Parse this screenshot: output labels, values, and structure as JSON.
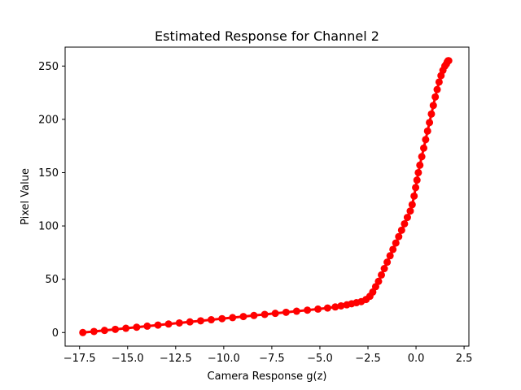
{
  "chart_data": {
    "type": "scatter",
    "title": "Estimated Response for Channel 2",
    "xlabel": "Camera Response g(z)",
    "ylabel": "Pixel Value",
    "xlim": [
      -18.25,
      2.75
    ],
    "ylim": [
      -12.75,
      267.75
    ],
    "xticks": [
      -17.5,
      -15.0,
      -12.5,
      -10.0,
      -7.5,
      -5.0,
      -2.5,
      0.0,
      2.5
    ],
    "xtick_labels": [
      "−17.5",
      "−15.0",
      "−12.5",
      "−10.0",
      "−7.5",
      "−5.0",
      "−2.5",
      "0.0",
      "2.5"
    ],
    "yticks": [
      0,
      50,
      100,
      150,
      200,
      250
    ],
    "ytick_labels": [
      "0",
      "50",
      "100",
      "150",
      "200",
      "250"
    ],
    "grid": false,
    "legend": "none",
    "marker": "circle",
    "color": "#ff0000",
    "series": [
      {
        "x": [
          -17.33,
          -16.75,
          -16.2,
          -15.64,
          -15.09,
          -14.53,
          -13.98,
          -13.42,
          -12.87,
          -12.31,
          -11.76,
          -11.2,
          -10.65,
          -10.09,
          -9.54,
          -8.98,
          -8.43,
          -7.87,
          -7.32,
          -6.76,
          -6.21,
          -5.65,
          -5.1,
          -4.6,
          -4.2,
          -3.9,
          -3.6,
          -3.35,
          -3.1,
          -2.85,
          -2.6,
          -2.4,
          -2.25,
          -2.1,
          -1.95,
          -1.8,
          -1.65,
          -1.5,
          -1.35,
          -1.2,
          -1.05,
          -0.9,
          -0.75,
          -0.6,
          -0.45,
          -0.3,
          -0.2,
          -0.1,
          -0.02,
          0.05,
          0.12,
          0.2,
          0.3,
          0.4,
          0.5,
          0.6,
          0.7,
          0.8,
          0.9,
          1.0,
          1.1,
          1.2,
          1.3,
          1.4,
          1.5,
          1.58,
          1.63,
          1.67,
          1.7
        ],
        "y": [
          0,
          1,
          2,
          3,
          4,
          5,
          6,
          7,
          8,
          9,
          10,
          11,
          12,
          13,
          14,
          15,
          16,
          17,
          18,
          19,
          20,
          21,
          22,
          23,
          24,
          25,
          26,
          27,
          28,
          29,
          31,
          34,
          38,
          43,
          48,
          54,
          60,
          66,
          72,
          78,
          84,
          90,
          96,
          102,
          108,
          114,
          120,
          128,
          136,
          143,
          150,
          157,
          165,
          173,
          181,
          189,
          197,
          205,
          213,
          221,
          228,
          235,
          241,
          246,
          250,
          252,
          254,
          255,
          255
        ]
      }
    ]
  }
}
